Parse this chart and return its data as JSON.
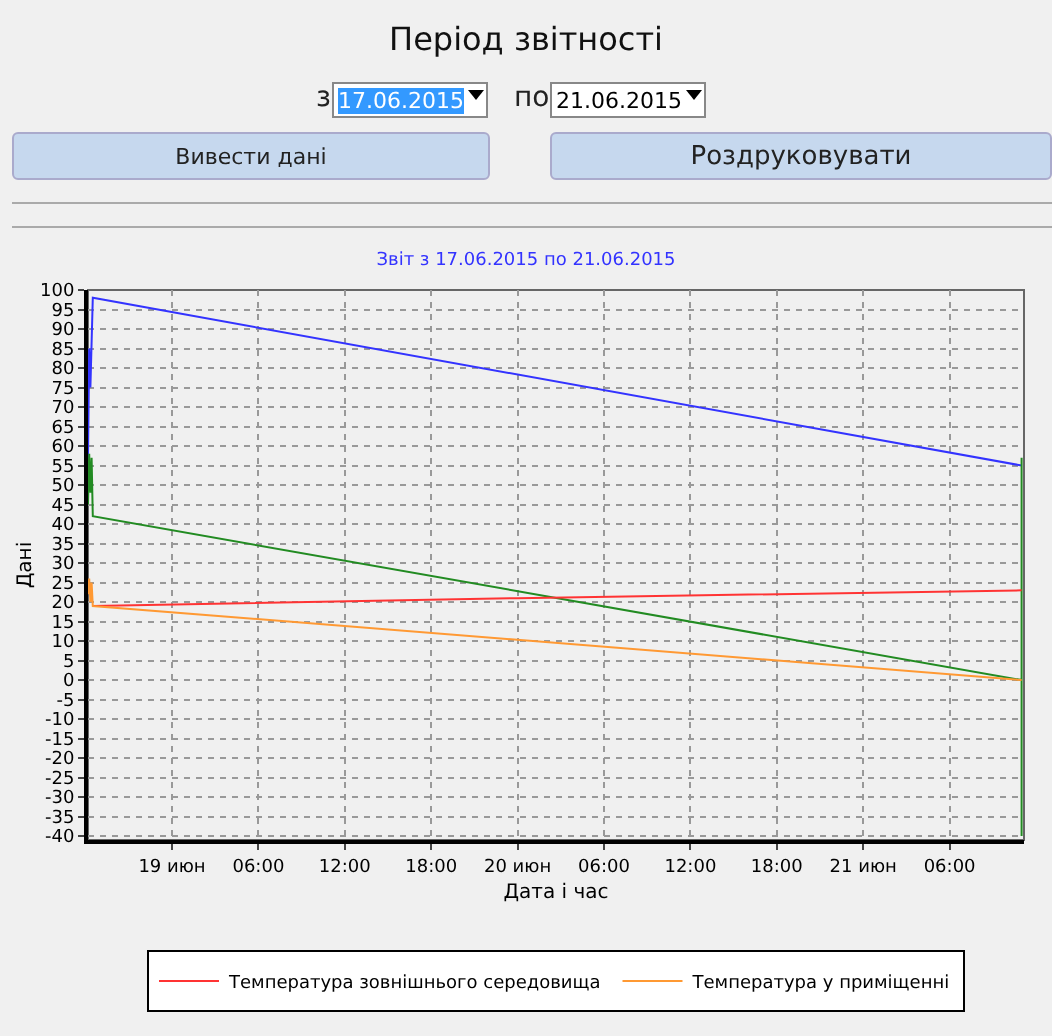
{
  "chart_data": {
    "type": "line",
    "title": "Звіт з 17.06.2015 по 21.06.2015",
    "xlabel": "Дата і час",
    "ylabel": "Дані",
    "annotations": [
      "Період звітності",
      "з",
      "17.06.2015",
      "по",
      "21.06.2015",
      "Вивести дані",
      "Роздруковувати"
    ],
    "xlim": [
      "2015-06-18T18:10",
      "2015-06-21T11:10"
    ],
    "xticks": [
      {
        "value": "2015-06-19T00:00",
        "label": "19 июн"
      },
      {
        "value": "2015-06-19T06:00",
        "label": "06:00"
      },
      {
        "value": "2015-06-19T12:00",
        "label": "12:00"
      },
      {
        "value": "2015-06-19T18:00",
        "label": "18:00"
      },
      {
        "value": "2015-06-20T00:00",
        "label": "20 июн"
      },
      {
        "value": "2015-06-20T06:00",
        "label": "06:00"
      },
      {
        "value": "2015-06-20T12:00",
        "label": "12:00"
      },
      {
        "value": "2015-06-20T18:00",
        "label": "18:00"
      },
      {
        "value": "2015-06-21T00:00",
        "label": "21 июн"
      },
      {
        "value": "2015-06-21T06:00",
        "label": "06:00"
      }
    ],
    "ylim": [
      -41,
      100
    ],
    "yticks": [
      -40,
      -35,
      -30,
      -25,
      -20,
      -15,
      -10,
      -5,
      0,
      5,
      10,
      15,
      20,
      25,
      30,
      35,
      40,
      45,
      50,
      55,
      60,
      65,
      70,
      75,
      80,
      85,
      90,
      95,
      100
    ],
    "grid": true,
    "legend": "bottom",
    "marker": "none",
    "line_style": "solid",
    "series": [
      {
        "color": "#3333ff",
        "x": [
          "2015-06-18T18:10",
          "2015-06-18T18:15",
          "2015-06-18T18:20",
          "2015-06-18T18:30",
          "2015-06-21T11:00"
        ],
        "values": [
          57,
          85,
          75,
          98,
          55
        ]
      },
      {
        "color": "#228b22",
        "x": [
          "2015-06-18T18:10",
          "2015-06-18T18:15",
          "2015-06-18T18:20",
          "2015-06-18T18:25",
          "2015-06-18T18:30",
          "2015-06-21T11:00",
          "2015-06-21T11:00",
          "2015-06-21T11:00"
        ],
        "values": [
          45,
          58,
          48,
          57,
          42,
          0,
          57,
          -40
        ]
      },
      {
        "name": "Температура зовнішнього середовища",
        "color": "#ff3333",
        "x": [
          "2015-06-18T18:30",
          "2015-06-20T00:00",
          "2015-06-21T11:00"
        ],
        "values": [
          19,
          21,
          23
        ]
      },
      {
        "name": "Температура у приміщенні",
        "color": "#ff9933",
        "x": [
          "2015-06-18T18:10",
          "2015-06-18T18:15",
          "2015-06-18T18:20",
          "2015-06-18T18:25",
          "2015-06-18T18:30",
          "2015-06-21T11:00"
        ],
        "values": [
          22,
          26,
          20,
          25,
          19,
          0
        ]
      }
    ]
  }
}
